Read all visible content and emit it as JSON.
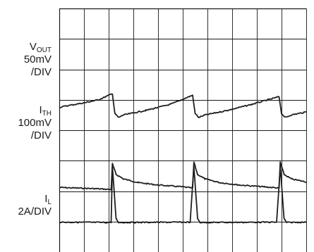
{
  "chart_data": {
    "type": "line",
    "title": "",
    "xlabel": "",
    "ylabel": "",
    "grid": true,
    "divisions": {
      "x": 10,
      "y": 8
    },
    "x_range": [
      0,
      10
    ],
    "y_range": [
      0,
      8
    ],
    "trace_color": "#1f1f1f",
    "grid_color": "#1a1a1a",
    "channels": [
      {
        "name_main": "V",
        "name_sub": "OUT",
        "scale": "50mV",
        "per": "/DIV",
        "baseline_div": 2.1,
        "points": [
          [
            0,
            2.12
          ],
          [
            1.5,
            2.08
          ],
          [
            2.1,
            2.05
          ],
          [
            2.15,
            2.9
          ],
          [
            2.3,
            2.55
          ],
          [
            2.6,
            2.4
          ],
          [
            3.2,
            2.28
          ],
          [
            4.0,
            2.2
          ],
          [
            5.0,
            2.14
          ],
          [
            5.4,
            2.1
          ],
          [
            5.45,
            2.95
          ],
          [
            5.6,
            2.55
          ],
          [
            5.9,
            2.4
          ],
          [
            6.5,
            2.28
          ],
          [
            7.3,
            2.2
          ],
          [
            8.3,
            2.14
          ],
          [
            8.9,
            2.1
          ],
          [
            8.95,
            2.95
          ],
          [
            9.1,
            2.55
          ],
          [
            9.4,
            2.4
          ],
          [
            10.0,
            2.3
          ]
        ]
      },
      {
        "name_main": "I",
        "name_sub": "TH",
        "scale": "100mV",
        "per": "/DIV",
        "baseline_div": 4.6,
        "points": [
          [
            0,
            4.75
          ],
          [
            0.3,
            4.8
          ],
          [
            1.0,
            4.9
          ],
          [
            1.6,
            5.0
          ],
          [
            2.15,
            5.2
          ],
          [
            2.25,
            4.55
          ],
          [
            2.4,
            4.42
          ],
          [
            2.6,
            4.5
          ],
          [
            3.5,
            4.65
          ],
          [
            4.5,
            4.85
          ],
          [
            5.4,
            5.15
          ],
          [
            5.5,
            4.55
          ],
          [
            5.65,
            4.42
          ],
          [
            5.9,
            4.5
          ],
          [
            6.8,
            4.65
          ],
          [
            7.8,
            4.85
          ],
          [
            8.9,
            5.1
          ],
          [
            9.0,
            4.55
          ],
          [
            9.15,
            4.42
          ],
          [
            9.4,
            4.5
          ],
          [
            10.0,
            4.6
          ]
        ]
      },
      {
        "name_main": "I",
        "name_sub": "L",
        "scale": "2A/DIV",
        "per": "",
        "baseline_div": 0.97,
        "points": [
          [
            0,
            0.98
          ],
          [
            2.0,
            0.97
          ],
          [
            2.1,
            0.98
          ],
          [
            2.15,
            2.8
          ],
          [
            2.3,
            1.1
          ],
          [
            2.4,
            0.97
          ],
          [
            5.3,
            0.98
          ],
          [
            5.45,
            2.8
          ],
          [
            5.6,
            1.1
          ],
          [
            5.7,
            0.97
          ],
          [
            8.8,
            0.98
          ],
          [
            8.95,
            2.8
          ],
          [
            9.1,
            1.1
          ],
          [
            9.2,
            0.97
          ],
          [
            10.0,
            0.98
          ]
        ]
      }
    ]
  }
}
